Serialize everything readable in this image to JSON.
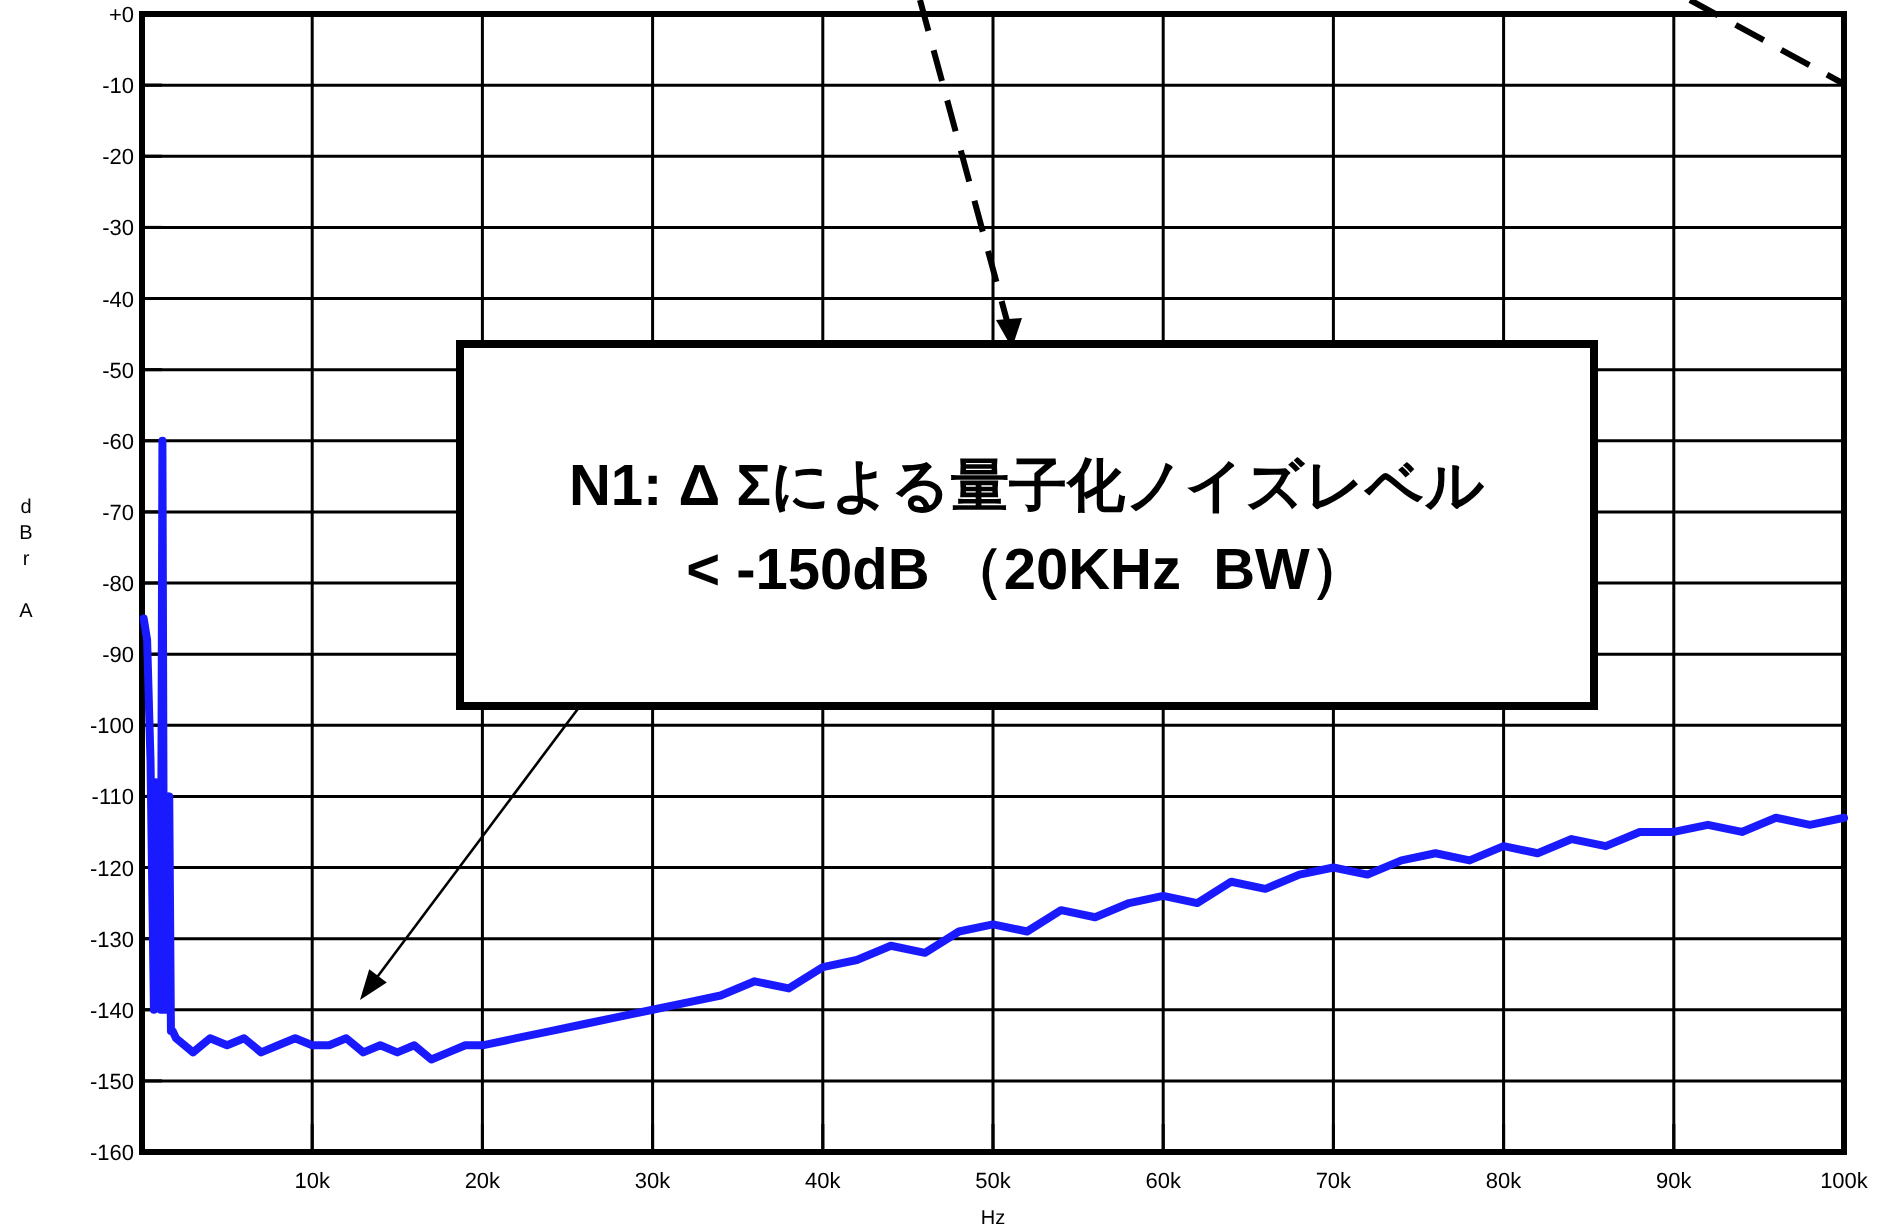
{
  "chart_data": {
    "type": "line",
    "xlabel": "Hz",
    "ylabel": "dBr A",
    "x": [
      100,
      300,
      500,
      700,
      800,
      900,
      1000,
      1100,
      1200,
      1300,
      1400,
      1500,
      1600,
      1700,
      1800,
      2000,
      3000,
      4000,
      5000,
      6000,
      7000,
      8000,
      9000,
      10000,
      11000,
      12000,
      13000,
      14000,
      15000,
      16000,
      17000,
      18000,
      19000,
      20000,
      22000,
      24000,
      26000,
      28000,
      30000,
      32000,
      34000,
      36000,
      38000,
      40000,
      42000,
      44000,
      46000,
      48000,
      50000,
      52000,
      54000,
      56000,
      58000,
      60000,
      62000,
      64000,
      66000,
      68000,
      70000,
      72000,
      74000,
      76000,
      78000,
      80000,
      82000,
      84000,
      86000,
      88000,
      90000,
      92000,
      94000,
      96000,
      98000,
      100000
    ],
    "series": [
      {
        "color": "#1a1aff",
        "values": [
          -85,
          -88,
          -105,
          -140,
          -108,
          -112,
          -110,
          -140,
          -60,
          -140,
          -110,
          -140,
          -110,
          -143,
          -143,
          -144,
          -146,
          -144,
          -145,
          -144,
          -146,
          -145,
          -144,
          -145,
          -145,
          -144,
          -146,
          -145,
          -146,
          -145,
          -147,
          -146,
          -145,
          -145,
          -144,
          -143,
          -142,
          -141,
          -140,
          -139,
          -138,
          -136,
          -137,
          -134,
          -133,
          -131,
          -132,
          -129,
          -128,
          -129,
          -126,
          -127,
          -125,
          -124,
          -125,
          -122,
          -123,
          -121,
          -120,
          -121,
          -119,
          -118,
          -119,
          -117,
          -118,
          -116,
          -117,
          -115,
          -115,
          -114,
          -115,
          -113,
          -114,
          -113
        ]
      }
    ],
    "xlim": [
      0,
      100000
    ],
    "ylim": [
      -160,
      0
    ],
    "xticks": [
      {
        "value": 10000,
        "label": "10k"
      },
      {
        "value": 20000,
        "label": "20k"
      },
      {
        "value": 30000,
        "label": "30k"
      },
      {
        "value": 40000,
        "label": "40k"
      },
      {
        "value": 50000,
        "label": "50k"
      },
      {
        "value": 60000,
        "label": "60k"
      },
      {
        "value": 70000,
        "label": "70k"
      },
      {
        "value": 80000,
        "label": "80k"
      },
      {
        "value": 90000,
        "label": "90k"
      },
      {
        "value": 100000,
        "label": "100k"
      }
    ],
    "yticks": [
      {
        "value": 0,
        "label": "+0"
      },
      -10,
      -20,
      -30,
      -40,
      -50,
      -60,
      -70,
      -80,
      -90,
      -100,
      -110,
      -120,
      -130,
      -140,
      -150,
      -160
    ],
    "grid": true,
    "annotations": [
      "N1: Δ Σによる量子化ノイズレベル\n< -150dB （20KHz  BW）"
    ]
  }
}
